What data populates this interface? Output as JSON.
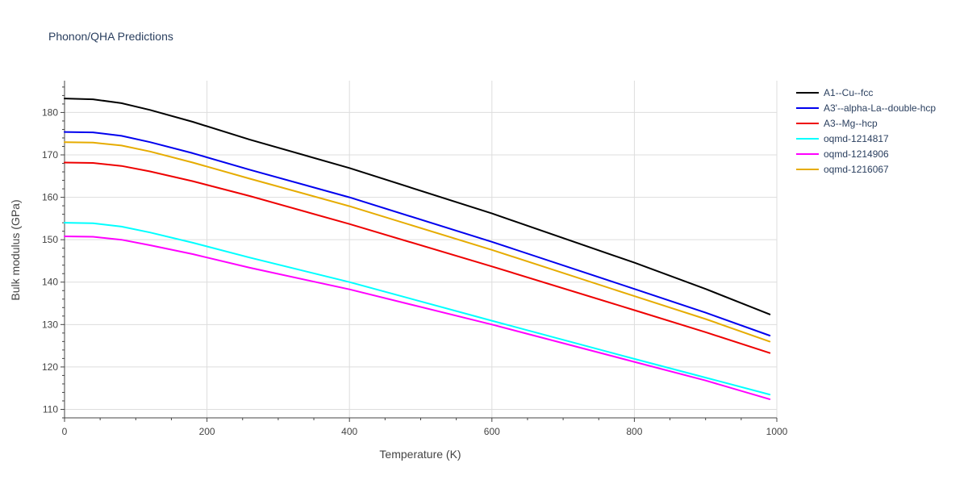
{
  "chart_data": {
    "type": "line",
    "title": "Phonon/QHA Predictions",
    "xlabel": "Temperature (K)",
    "ylabel": "Bulk modulus (GPa)",
    "xlim": [
      0,
      1000
    ],
    "ylim": [
      108,
      187.5
    ],
    "x_ticks": [
      0,
      200,
      400,
      600,
      800,
      1000
    ],
    "y_ticks": [
      110,
      120,
      130,
      140,
      150,
      160,
      170,
      180
    ],
    "grid": true,
    "legend_position": "top-right",
    "series": [
      {
        "name": "A1--Cu--fcc",
        "color": "#000000",
        "x": [
          0,
          40,
          80,
          120,
          180,
          260,
          400,
          600,
          800,
          900,
          990
        ],
        "y": [
          183.3,
          183.1,
          182.2,
          180.6,
          177.8,
          173.6,
          166.9,
          156.2,
          144.6,
          138.4,
          132.4
        ]
      },
      {
        "name": "A3'--alpha-La--double-hcp",
        "color": "#0000ee",
        "x": [
          0,
          40,
          80,
          120,
          180,
          260,
          400,
          600,
          800,
          900,
          990
        ],
        "y": [
          175.4,
          175.3,
          174.5,
          173.0,
          170.4,
          166.5,
          160.0,
          149.5,
          138.4,
          132.8,
          127.4
        ]
      },
      {
        "name": "A3--Mg--hcp",
        "color": "#ee0000",
        "x": [
          0,
          40,
          80,
          120,
          180,
          260,
          400,
          600,
          800,
          900,
          990
        ],
        "y": [
          168.2,
          168.1,
          167.4,
          166.1,
          163.8,
          160.3,
          153.7,
          143.7,
          133.4,
          128.2,
          123.3
        ]
      },
      {
        "name": "oqmd-1214817",
        "color": "#00ffff",
        "x": [
          0,
          40,
          80,
          120,
          180,
          260,
          400,
          600,
          800,
          900,
          990
        ],
        "y": [
          154.0,
          153.9,
          153.1,
          151.7,
          149.3,
          145.8,
          140.0,
          130.9,
          121.9,
          117.5,
          113.5
        ]
      },
      {
        "name": "oqmd-1214906",
        "color": "#ff00ff",
        "x": [
          0,
          40,
          80,
          120,
          180,
          260,
          400,
          600,
          800,
          900,
          990
        ],
        "y": [
          150.8,
          150.7,
          150.0,
          148.7,
          146.6,
          143.4,
          138.3,
          130.0,
          121.2,
          116.8,
          112.4
        ]
      },
      {
        "name": "oqmd-1216067",
        "color": "#e6ac00",
        "x": [
          0,
          40,
          80,
          120,
          180,
          260,
          400,
          600,
          800,
          900,
          990
        ],
        "y": [
          173.0,
          172.9,
          172.2,
          170.8,
          168.2,
          164.4,
          157.9,
          147.6,
          136.7,
          131.3,
          126.0
        ]
      }
    ]
  }
}
